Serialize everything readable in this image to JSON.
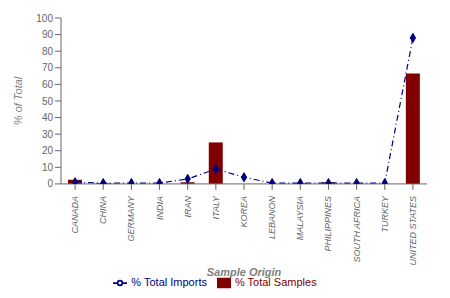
{
  "chart_data": {
    "type": "bar",
    "xlabel": "Sample Origin",
    "ylabel": "% of Total",
    "categories": [
      "CANADA",
      "CHINA",
      "GERMANY",
      "INDIA",
      "IRAN",
      "ITALY",
      "KOREA",
      "LEBANON",
      "MALAYSIA",
      "PHILIPPINES",
      "SOUTH AFRICA",
      "TURKEY",
      "UNITED STATES"
    ],
    "series": [
      {
        "name": "% Total Samples",
        "type": "bar",
        "color": "#800000",
        "values": [
          2.5,
          0.5,
          0.0,
          0.0,
          1.0,
          25.0,
          0.0,
          0.0,
          0.5,
          1.0,
          0.0,
          0.0,
          66.5
        ]
      },
      {
        "name": "% Total Imports",
        "type": "line",
        "color": "#000080",
        "line_style": "dashdot",
        "marker": "diamond",
        "values": [
          1.0,
          0.5,
          0.5,
          0.5,
          3.0,
          9.0,
          4.0,
          0.5,
          0.5,
          0.5,
          0.5,
          0.5,
          88.0
        ]
      }
    ],
    "ylim": [
      0,
      100
    ],
    "yticks": [
      0,
      10,
      20,
      30,
      40,
      50,
      60,
      70,
      80,
      90,
      100
    ],
    "grid": false,
    "legend": "bottom"
  }
}
